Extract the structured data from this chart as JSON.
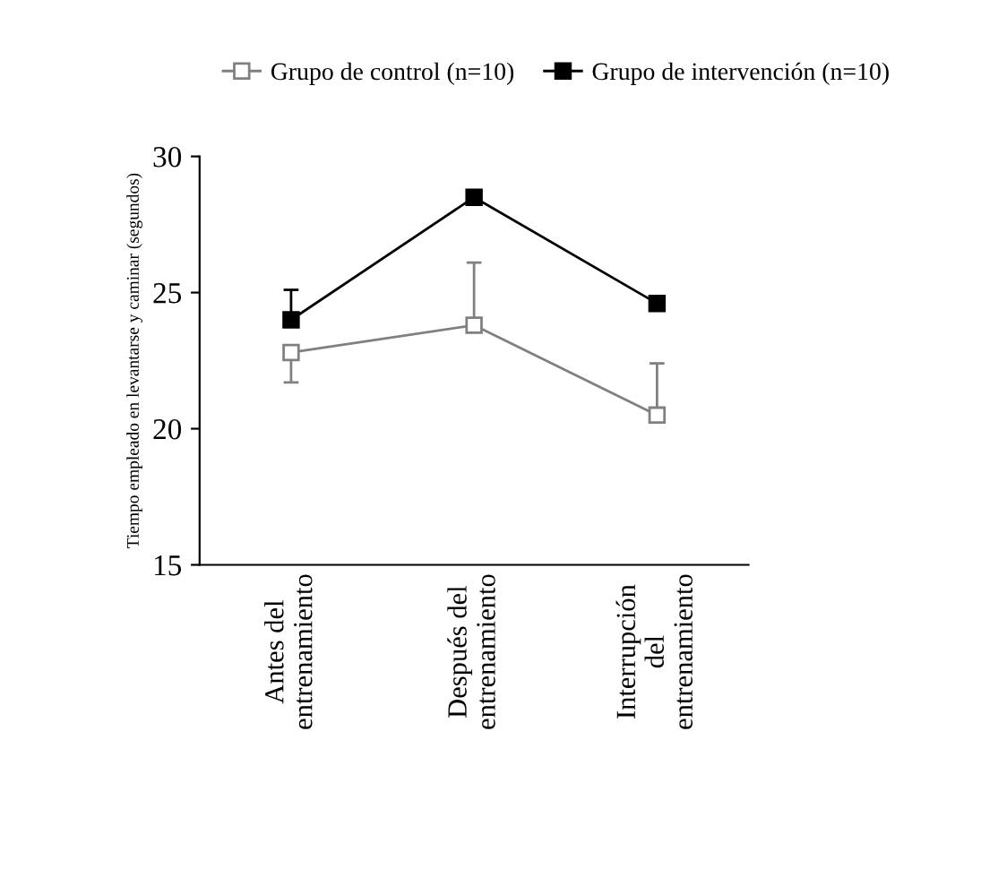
{
  "chart_data": {
    "type": "line",
    "ylabel": "Tiempo empleado en levantarse y caminar (segundos)",
    "categories": [
      "Antes del\nentrenamiento",
      "Después del\nentrenamiento",
      "Interrupción\ndel\nentrenamiento"
    ],
    "series": [
      {
        "name": "Grupo de control (n=10)",
        "color": "#808080",
        "values": [
          22.8,
          23.8,
          20.5
        ],
        "errors": [
          [
            21.7,
            22.8
          ],
          [
            23.8,
            26.1
          ],
          [
            20.5,
            22.4
          ]
        ],
        "marker": "square"
      },
      {
        "name": "Grupo de intervención (n=10)",
        "color": "#000000",
        "values": [
          24.0,
          28.5,
          24.6
        ],
        "errors": [
          [
            24.0,
            25.1
          ],
          null,
          null
        ],
        "marker": "square"
      }
    ],
    "ylim": [
      15,
      30
    ],
    "yticks": [
      15,
      20,
      25,
      30
    ],
    "grid": false,
    "legend": "top",
    "line_style": "solid"
  }
}
